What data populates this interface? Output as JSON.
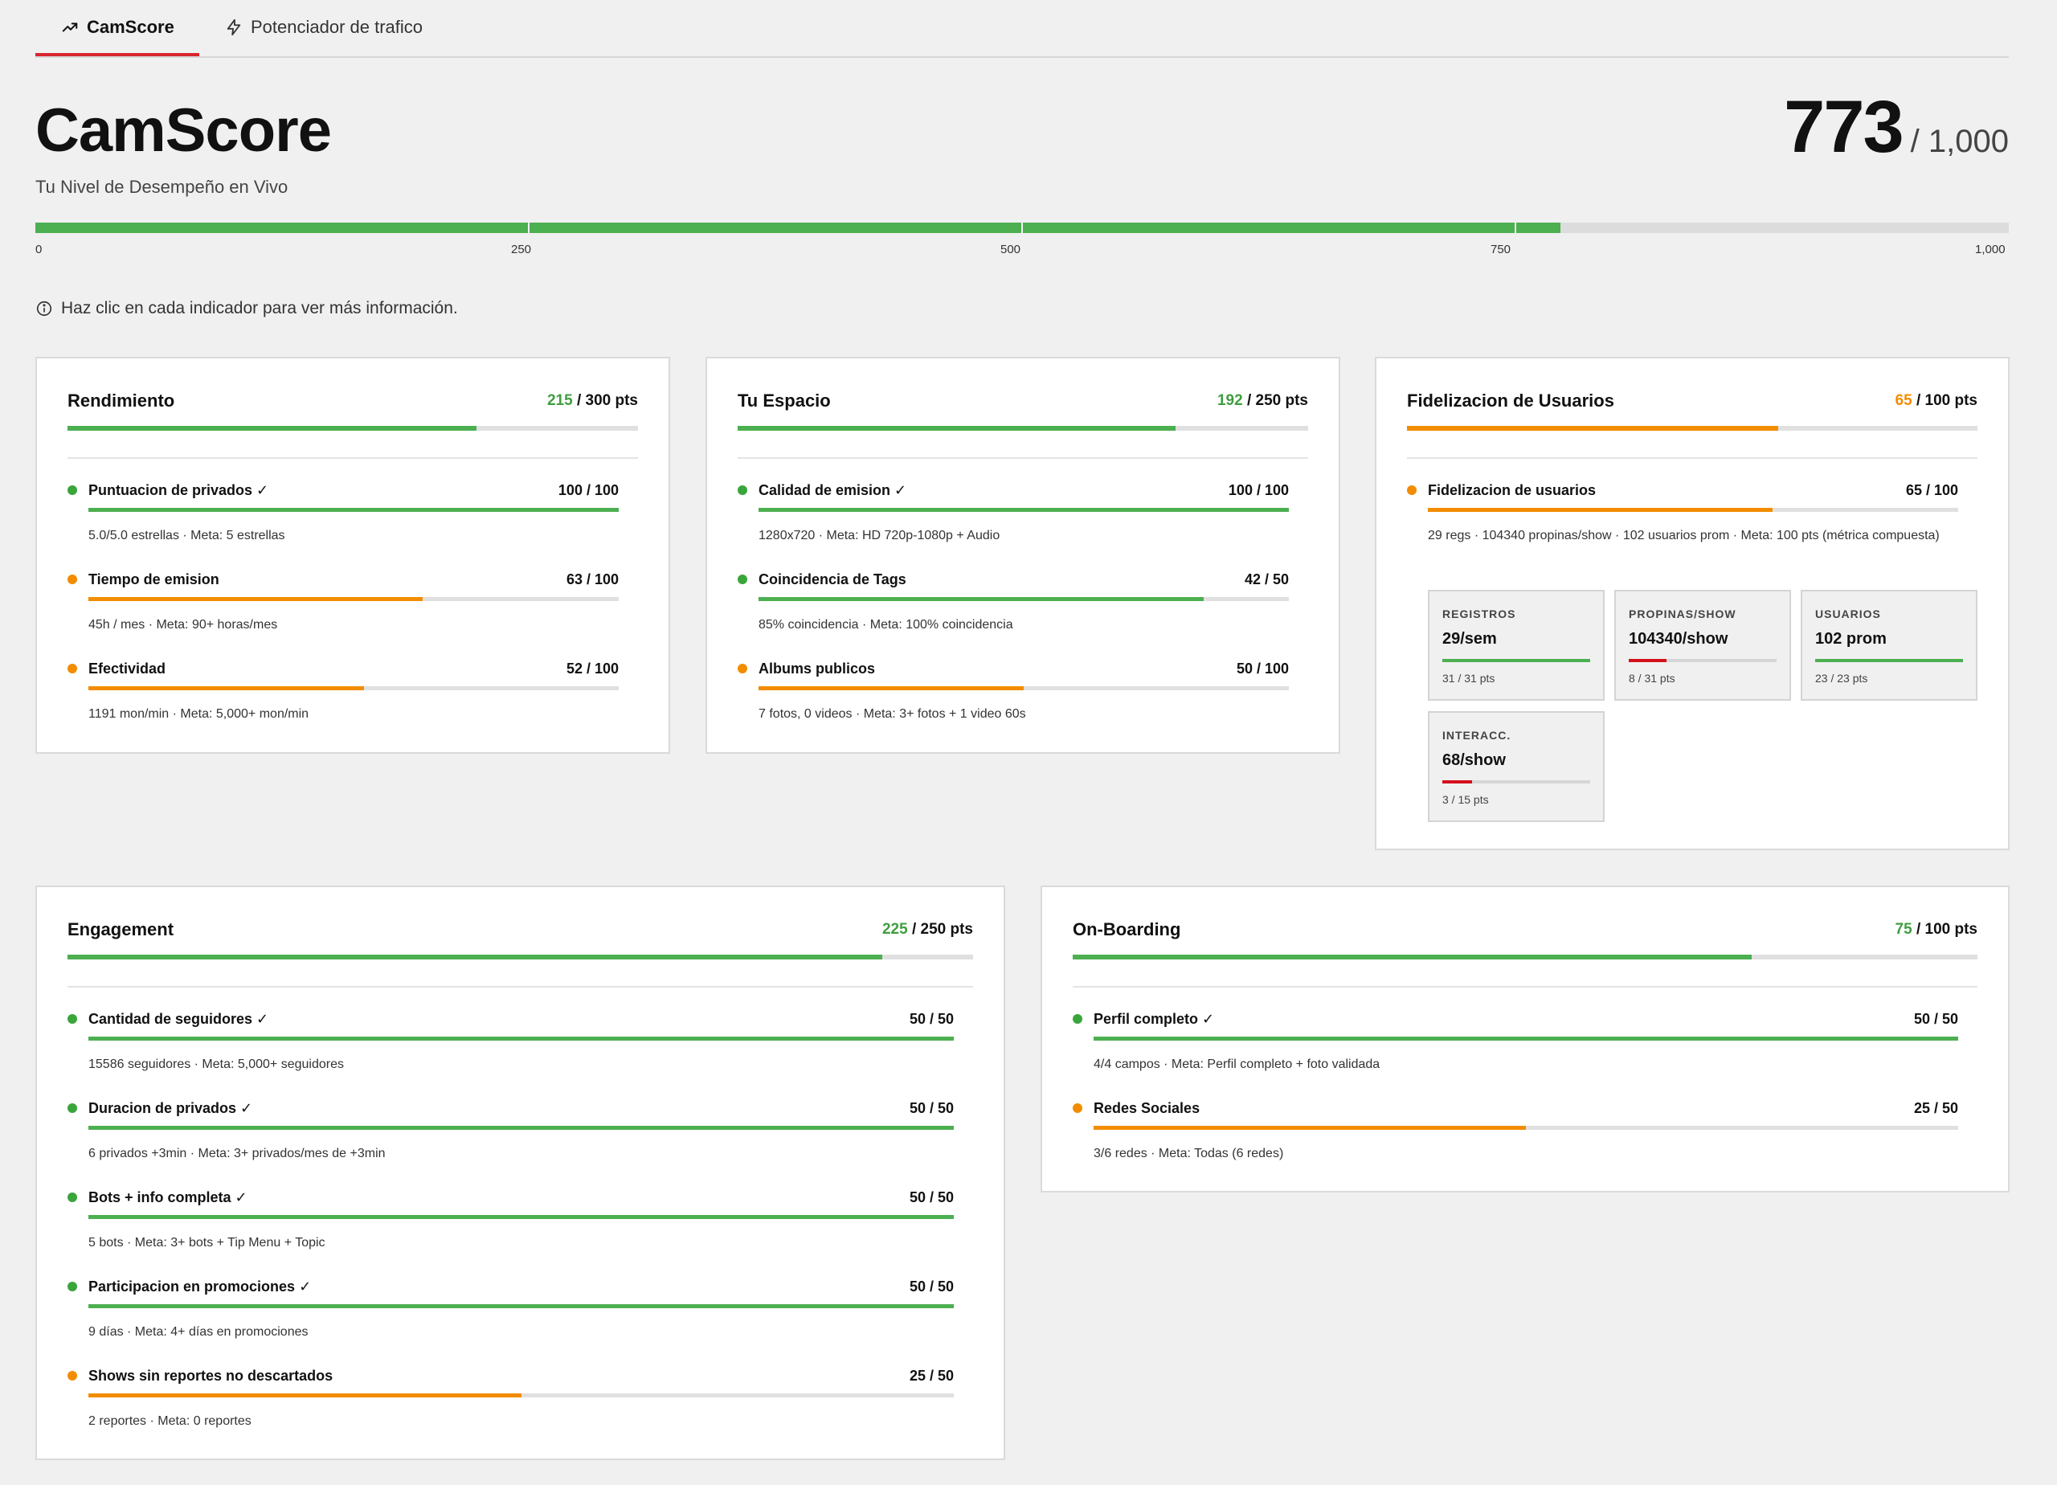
{
  "tabs": [
    {
      "label": "CamScore",
      "icon": "trending-up-icon"
    },
    {
      "label": "Potenciador de trafico",
      "icon": "lightning-icon"
    }
  ],
  "header": {
    "title": "CamScore",
    "subtitle": "Tu Nivel de Desempeño en Vivo",
    "score": 773,
    "score_display": "773",
    "score_max": "/ 1,000"
  },
  "main_bar": {
    "max": 1000,
    "value": 773,
    "ticks": [
      "0",
      "250",
      "500",
      "750",
      "1,000"
    ]
  },
  "info_text": "Haz clic en cada indicador para ver más información.",
  "colors": {
    "green": "#4caf50",
    "orange": "#f28c00",
    "red": "#d50f1c",
    "accent": "#d8262d"
  },
  "cards": {
    "rendimiento": {
      "title": "Rendimiento",
      "got": "215",
      "max": "/ 300 pts",
      "fraction": 0.7167,
      "color": "green",
      "items": [
        {
          "name": "Puntuacion de privados ✓",
          "value": "100 / 100",
          "fraction": 1.0,
          "color": "green",
          "desc": "5.0/5.0 estrellas · Meta: 5 estrellas"
        },
        {
          "name": "Tiempo de emision",
          "value": "63 / 100",
          "fraction": 0.63,
          "color": "orange",
          "desc": "45h / mes · Meta: 90+ horas/mes"
        },
        {
          "name": "Efectividad",
          "value": "52 / 100",
          "fraction": 0.52,
          "color": "orange",
          "desc": "1191 mon/min · Meta: 5,000+ mon/min"
        }
      ]
    },
    "espacio": {
      "title": "Tu Espacio",
      "got": "192",
      "max": "/ 250 pts",
      "fraction": 0.768,
      "color": "green",
      "items": [
        {
          "name": "Calidad de emision ✓",
          "value": "100 / 100",
          "fraction": 1.0,
          "color": "green",
          "desc": "1280x720 · Meta: HD 720p-1080p + Audio"
        },
        {
          "name": "Coincidencia de Tags",
          "value": "42 / 50",
          "fraction": 0.84,
          "color": "green",
          "desc": "85% coincidencia · Meta: 100% coincidencia"
        },
        {
          "name": "Albums publicos",
          "value": "50 / 100",
          "fraction": 0.5,
          "color": "orange",
          "desc": "7 fotos, 0 videos · Meta: 3+ fotos + 1 video 60s"
        }
      ]
    },
    "fidelizacion": {
      "title": "Fidelizacion de Usuarios",
      "got": "65",
      "max": "/ 100 pts",
      "fraction": 0.65,
      "color": "orange",
      "items": [
        {
          "name": "Fidelizacion de usuarios",
          "value": "65 / 100",
          "fraction": 0.65,
          "color": "orange",
          "desc": "29 regs · 104340 propinas/show · 102 usuarios prom · Meta: 100 pts (métrica compuesta)"
        }
      ],
      "subboxes": [
        {
          "label": "REGISTROS",
          "value": "29/sem",
          "pts": "31 / 31 pts",
          "fraction": 1.0,
          "color": "green"
        },
        {
          "label": "PROPINAS/SHOW",
          "value": "104340/show",
          "pts": "8 / 31 pts",
          "fraction": 0.258,
          "color": "red"
        },
        {
          "label": "USUARIOS",
          "value": "102 prom",
          "pts": "23 / 23 pts",
          "fraction": 1.0,
          "color": "green"
        },
        {
          "label": "INTERACC.",
          "value": "68/show",
          "pts": "3 / 15 pts",
          "fraction": 0.2,
          "color": "red"
        }
      ]
    },
    "engagement": {
      "title": "Engagement",
      "got": "225",
      "max": "/ 250 pts",
      "fraction": 0.9,
      "color": "green",
      "items": [
        {
          "name": "Cantidad de seguidores ✓",
          "value": "50 / 50",
          "fraction": 1.0,
          "color": "green",
          "desc": "15586 seguidores · Meta: 5,000+ seguidores"
        },
        {
          "name": "Duracion de privados ✓",
          "value": "50 / 50",
          "fraction": 1.0,
          "color": "green",
          "desc": "6 privados +3min · Meta: 3+ privados/mes de +3min"
        },
        {
          "name": "Bots + info completa ✓",
          "value": "50 / 50",
          "fraction": 1.0,
          "color": "green",
          "desc": "5 bots · Meta: 3+ bots + Tip Menu + Topic"
        },
        {
          "name": "Participacion en promociones ✓",
          "value": "50 / 50",
          "fraction": 1.0,
          "color": "green",
          "desc": "9 días · Meta: 4+ días en promociones"
        },
        {
          "name": "Shows sin reportes no descartados",
          "value": "25 / 50",
          "fraction": 0.5,
          "color": "orange",
          "desc": "2 reportes · Meta: 0 reportes"
        }
      ]
    },
    "onboarding": {
      "title": "On-Boarding",
      "got": "75",
      "max": "/ 100 pts",
      "fraction": 0.75,
      "color": "green",
      "items": [
        {
          "name": "Perfil completo ✓",
          "value": "50 / 50",
          "fraction": 1.0,
          "color": "green",
          "desc": "4/4 campos · Meta: Perfil completo + foto validada"
        },
        {
          "name": "Redes Sociales",
          "value": "25 / 50",
          "fraction": 0.5,
          "color": "orange",
          "desc": "3/6 redes · Meta: Todas (6 redes)"
        }
      ]
    }
  }
}
